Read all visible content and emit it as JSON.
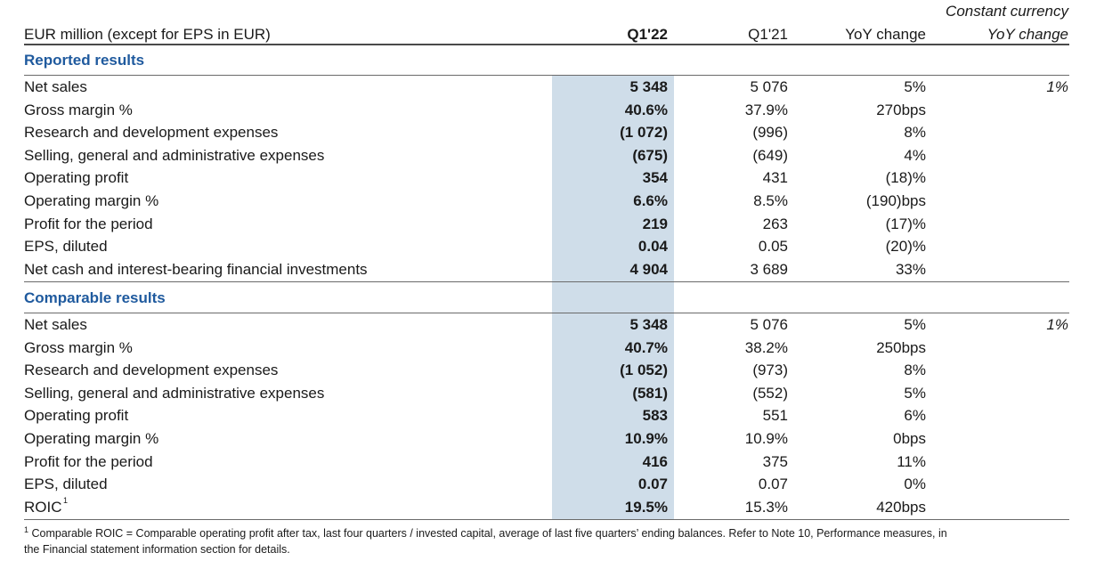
{
  "header": {
    "unit_label": "EUR million (except for EPS in EUR)",
    "col_q122": "Q1'22",
    "col_q121": "Q1'21",
    "col_yoy": "YoY change",
    "col_cc_line1": "Constant currency",
    "col_cc_line2": "YoY change"
  },
  "reported": {
    "title": "Reported results",
    "rows": [
      {
        "label": "Net sales",
        "q122": "5 348",
        "q121": "5 076",
        "yoy": "5%",
        "cc": "1%"
      },
      {
        "label": "Gross margin %",
        "q122": "40.6%",
        "q121": "37.9%",
        "yoy": "270bps",
        "cc": ""
      },
      {
        "label": "Research and development expenses",
        "q122": "(1 072)",
        "q121": "(996)",
        "yoy": "8%",
        "cc": ""
      },
      {
        "label": "Selling, general and administrative expenses",
        "q122": "(675)",
        "q121": "(649)",
        "yoy": "4%",
        "cc": ""
      },
      {
        "label": "Operating profit",
        "q122": "354",
        "q121": "431",
        "yoy": "(18)%",
        "cc": ""
      },
      {
        "label": "Operating margin %",
        "q122": "6.6%",
        "q121": "8.5%",
        "yoy": "(190)bps",
        "cc": ""
      },
      {
        "label": "Profit for the period",
        "q122": "219",
        "q121": "263",
        "yoy": "(17)%",
        "cc": ""
      },
      {
        "label": "EPS, diluted",
        "q122": "0.04",
        "q121": "0.05",
        "yoy": "(20)%",
        "cc": ""
      },
      {
        "label": "Net cash and interest-bearing financial investments",
        "q122": "4 904",
        "q121": "3 689",
        "yoy": "33%",
        "cc": ""
      }
    ]
  },
  "comparable": {
    "title": "Comparable results",
    "rows": [
      {
        "label": "Net sales",
        "q122": "5 348",
        "q121": "5 076",
        "yoy": "5%",
        "cc": "1%"
      },
      {
        "label": "Gross margin %",
        "q122": "40.7%",
        "q121": "38.2%",
        "yoy": "250bps",
        "cc": ""
      },
      {
        "label": "Research and development expenses",
        "q122": "(1 052)",
        "q121": "(973)",
        "yoy": "8%",
        "cc": ""
      },
      {
        "label": "Selling, general and administrative expenses",
        "q122": "(581)",
        "q121": "(552)",
        "yoy": "5%",
        "cc": ""
      },
      {
        "label": "Operating profit",
        "q122": "583",
        "q121": "551",
        "yoy": "6%",
        "cc": ""
      },
      {
        "label": "Operating margin %",
        "q122": "10.9%",
        "q121": "10.9%",
        "yoy": "0bps",
        "cc": ""
      },
      {
        "label": "Profit for the period",
        "q122": "416",
        "q121": "375",
        "yoy": "11%",
        "cc": ""
      },
      {
        "label": "EPS, diluted",
        "q122": "0.07",
        "q121": "0.07",
        "yoy": "0%",
        "cc": ""
      },
      {
        "label": "ROIC",
        "q122": "19.5%",
        "q121": "15.3%",
        "yoy": "420bps",
        "cc": ""
      }
    ]
  },
  "footnote": {
    "roic_sup": "1",
    "sup": "1",
    "line1": "Comparable ROIC = Comparable operating profit after tax, last four quarters / invested capital, average of last five quarters’ ending balances. Refer to Note 10, Performance measures, in",
    "line2": "the Financial statement information section for details."
  },
  "colors": {
    "highlight": "#cfdde9",
    "section_title": "#1f5a9e"
  }
}
